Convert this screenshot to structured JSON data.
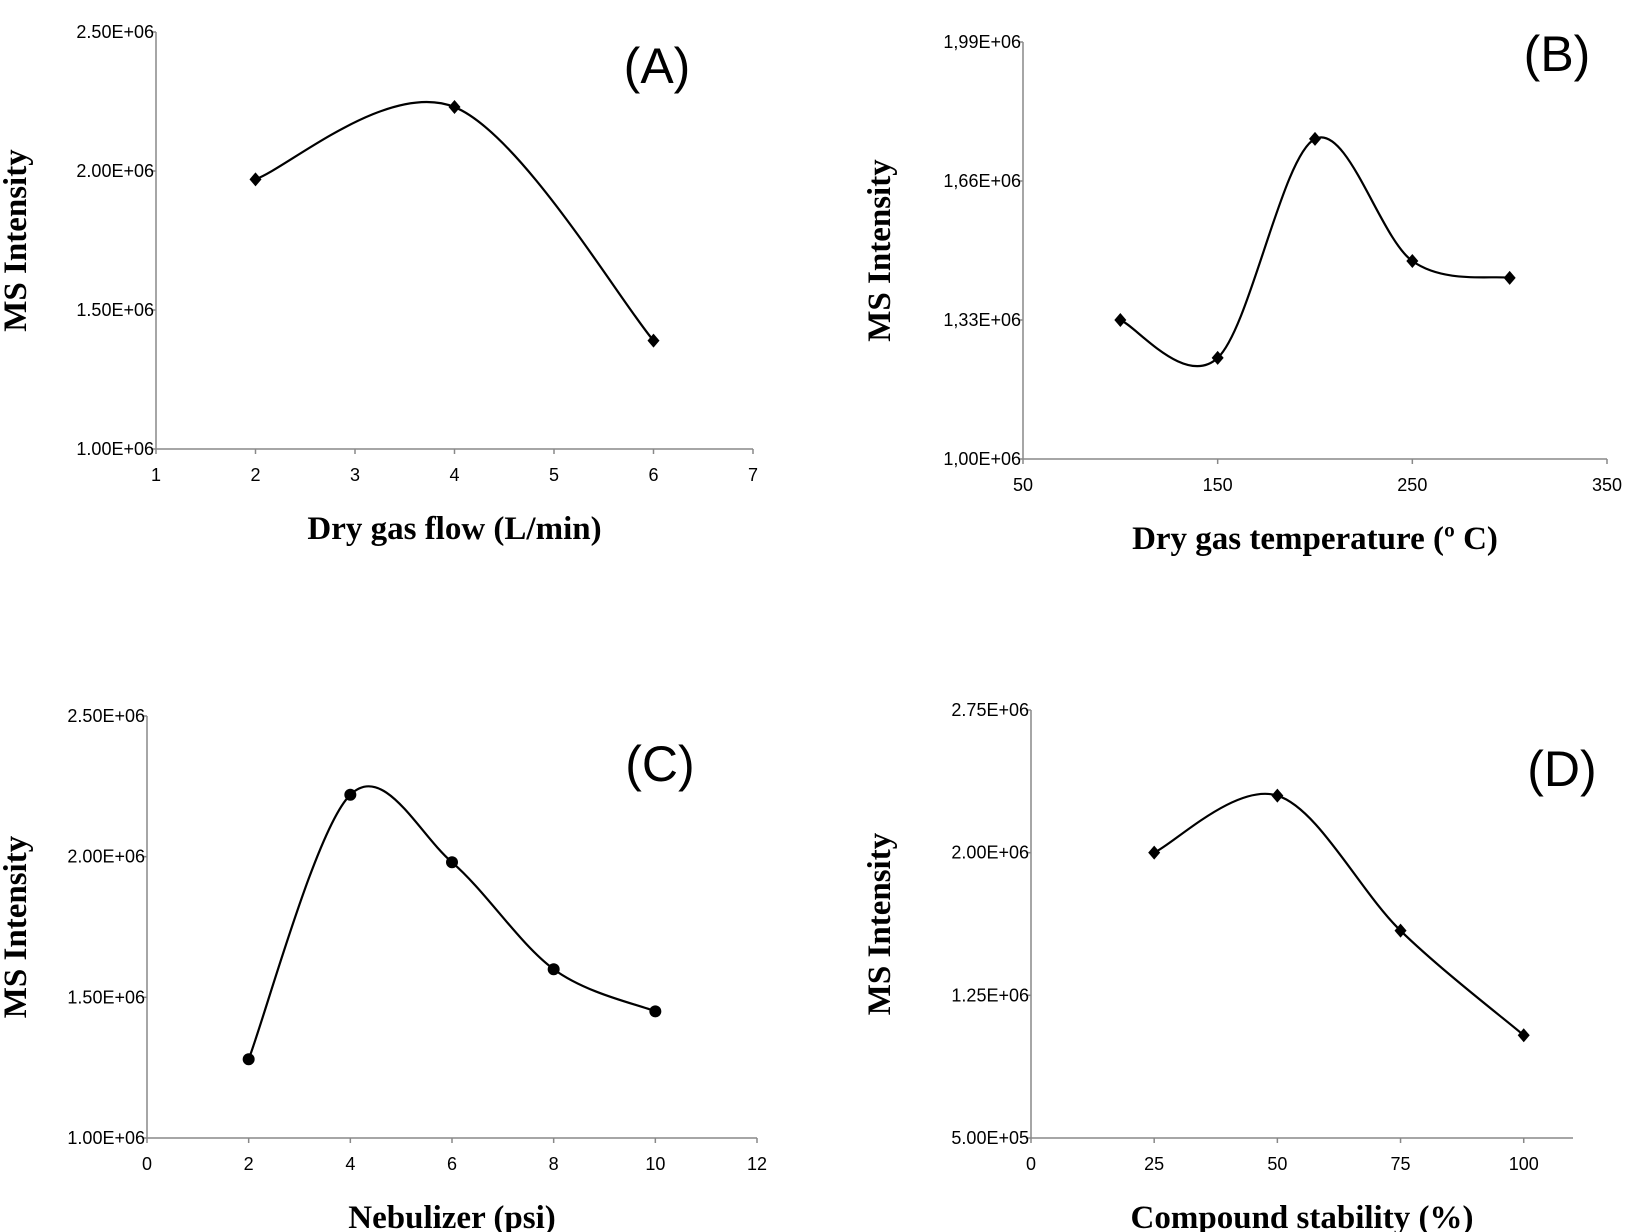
{
  "chart_data": [
    {
      "type": "line",
      "panel_label": "(A)",
      "xlabel": "Dry gas flow (L/min)",
      "ylabel": "MS Intensity",
      "marker": "diamond",
      "color": "#000000",
      "x": [
        2,
        4,
        6
      ],
      "values": [
        1970000,
        2230000,
        1390000
      ],
      "xlim": [
        1,
        7
      ],
      "xticks": [
        1,
        2,
        3,
        4,
        5,
        6,
        7
      ],
      "ylim": [
        1000000,
        2500000
      ],
      "yticks": [
        {
          "value": 1000000,
          "label": "1.00E+06"
        },
        {
          "value": 1500000,
          "label": "1.50E+06"
        },
        {
          "value": 2000000,
          "label": "2.00E+06"
        },
        {
          "value": 2500000,
          "label": "2.50E+06"
        }
      ]
    },
    {
      "type": "line",
      "panel_label": "(B)",
      "xlabel": "Dry gas temperature (º C)",
      "ylabel": "MS Intensity",
      "marker": "diamond",
      "color": "#000000",
      "x": [
        100,
        150,
        200,
        250,
        300
      ],
      "values": [
        1330000,
        1240000,
        1760000,
        1470000,
        1430000
      ],
      "xlim": [
        50,
        350
      ],
      "xticks": [
        50,
        150,
        250,
        350
      ],
      "ylim": [
        1000000,
        1990000
      ],
      "yticks": [
        {
          "value": 1000000,
          "label": "1,00E+06"
        },
        {
          "value": 1330000,
          "label": "1,33E+06"
        },
        {
          "value": 1660000,
          "label": "1,66E+06"
        },
        {
          "value": 1990000,
          "label": "1,99E+06"
        }
      ]
    },
    {
      "type": "line",
      "panel_label": "(C)",
      "xlabel": "Nebulizer (psi)",
      "ylabel": "MS Intensity",
      "marker": "circle",
      "color": "#000000",
      "x": [
        2,
        4,
        6,
        8,
        10
      ],
      "values": [
        1280000,
        2220000,
        1980000,
        1600000,
        1450000
      ],
      "xlim": [
        0,
        12
      ],
      "xticks": [
        0,
        2,
        4,
        6,
        8,
        10,
        12
      ],
      "ylim": [
        1000000,
        2500000
      ],
      "yticks": [
        {
          "value": 1000000,
          "label": "1.00E+06"
        },
        {
          "value": 1500000,
          "label": "1.50E+06"
        },
        {
          "value": 2000000,
          "label": "2.00E+06"
        },
        {
          "value": 2500000,
          "label": "2.50E+06"
        }
      ]
    },
    {
      "type": "line",
      "panel_label": "(D)",
      "xlabel": "Compound stability (%)",
      "ylabel": "MS Intensity",
      "marker": "diamond",
      "color": "#000000",
      "x": [
        25,
        50,
        75,
        100
      ],
      "values": [
        2000000,
        2300000,
        1590000,
        1040000
      ],
      "xlim": [
        0,
        110
      ],
      "xticks": [
        0,
        25,
        50,
        75,
        100
      ],
      "ylim": [
        500000,
        2750000
      ],
      "yticks": [
        {
          "value": 500000,
          "label": "5.00E+05"
        },
        {
          "value": 1250000,
          "label": "1.25E+06"
        },
        {
          "value": 2000000,
          "label": "2.00E+06"
        },
        {
          "value": 2750000,
          "label": "2.75E+06"
        }
      ]
    }
  ]
}
